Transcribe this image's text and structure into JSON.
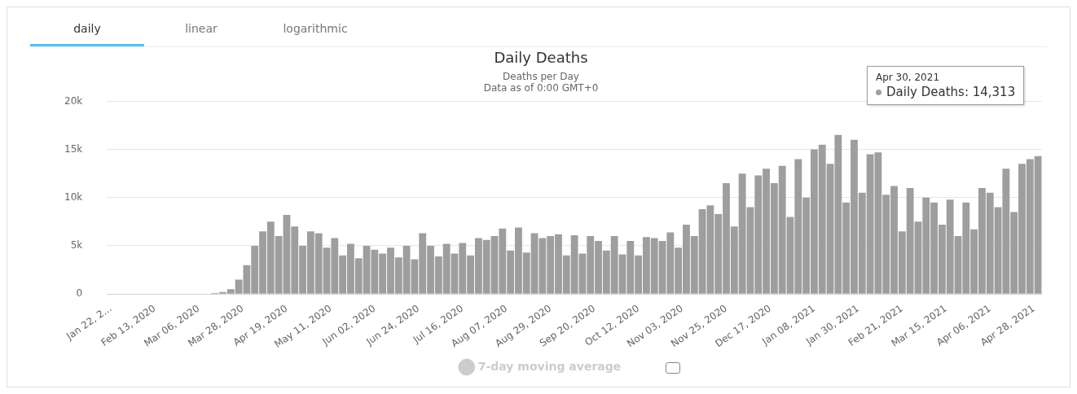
{
  "chart_data": {
    "type": "bar",
    "title": "Daily Deaths",
    "subtitle": "Deaths per Day\nData as of 0:00 GMT+0",
    "annotations": [
      "daily",
      "linear",
      "logarithmic",
      "Apr 30, 2021",
      "Daily Deaths: 14,313"
    ],
    "x": [
      "2020-01-22",
      "2020-01-26",
      "2020-01-30",
      "2020-02-03",
      "2020-02-07",
      "2020-02-11",
      "2020-02-15",
      "2020-02-19",
      "2020-02-23",
      "2020-02-27",
      "2020-03-02",
      "2020-03-06",
      "2020-03-10",
      "2020-03-14",
      "2020-03-18",
      "2020-03-22",
      "2020-03-26",
      "2020-03-30",
      "2020-04-03",
      "2020-04-07",
      "2020-04-11",
      "2020-04-15",
      "2020-04-19",
      "2020-04-23",
      "2020-04-27",
      "2020-05-01",
      "2020-05-05",
      "2020-05-09",
      "2020-05-13",
      "2020-05-17",
      "2020-05-21",
      "2020-05-25",
      "2020-05-29",
      "2020-06-02",
      "2020-06-06",
      "2020-06-10",
      "2020-06-14",
      "2020-06-18",
      "2020-06-22",
      "2020-06-26",
      "2020-06-30",
      "2020-07-04",
      "2020-07-08",
      "2020-07-12",
      "2020-07-16",
      "2020-07-20",
      "2020-07-24",
      "2020-07-28",
      "2020-08-01",
      "2020-08-05",
      "2020-08-09",
      "2020-08-13",
      "2020-08-17",
      "2020-08-21",
      "2020-08-25",
      "2020-08-29",
      "2020-09-02",
      "2020-09-06",
      "2020-09-10",
      "2020-09-14",
      "2020-09-18",
      "2020-09-22",
      "2020-09-26",
      "2020-09-30",
      "2020-10-04",
      "2020-10-08",
      "2020-10-12",
      "2020-10-16",
      "2020-10-20",
      "2020-10-24",
      "2020-10-28",
      "2020-11-01",
      "2020-11-05",
      "2020-11-09",
      "2020-11-13",
      "2020-11-17",
      "2020-11-21",
      "2020-11-25",
      "2020-11-29",
      "2020-12-03",
      "2020-12-07",
      "2020-12-11",
      "2020-12-15",
      "2020-12-19",
      "2020-12-23",
      "2020-12-27",
      "2020-12-31",
      "2021-01-04",
      "2021-01-08",
      "2021-01-12",
      "2021-01-16",
      "2021-01-20",
      "2021-01-24",
      "2021-01-28",
      "2021-02-01",
      "2021-02-05",
      "2021-02-09",
      "2021-02-13",
      "2021-02-17",
      "2021-02-21",
      "2021-02-25",
      "2021-03-01",
      "2021-03-05",
      "2021-03-09",
      "2021-03-13",
      "2021-03-17",
      "2021-03-21",
      "2021-03-25",
      "2021-03-29",
      "2021-04-02",
      "2021-04-06",
      "2021-04-10",
      "2021-04-14",
      "2021-04-18",
      "2021-04-22",
      "2021-04-26",
      "2021-04-30"
    ],
    "series": [
      {
        "color": "#9e9e9e",
        "values": [
          0,
          0,
          0,
          0,
          0,
          0,
          0,
          0,
          0,
          0,
          0,
          0,
          0,
          100,
          200,
          500,
          1500,
          3000,
          5000,
          6500,
          7500,
          6000,
          8200,
          7000,
          5000,
          6500,
          6300,
          4800,
          5800,
          4000,
          5200,
          3700,
          5000,
          4600,
          4200,
          4800,
          3800,
          5000,
          3600,
          6300,
          5000,
          3900,
          5200,
          4200,
          5300,
          4000,
          5800,
          5600,
          6000,
          6800,
          4500,
          6900,
          4300,
          6300,
          5800,
          6000,
          6200,
          4000,
          6100,
          4200,
          6000,
          5500,
          4500,
          6000,
          4100,
          5500,
          4000,
          5900,
          5800,
          5500,
          6400,
          4800,
          7200,
          6000,
          8800,
          9200,
          8300,
          11500,
          7000,
          12500,
          9000,
          12300,
          13000,
          11500,
          13300,
          8000,
          14000,
          10000,
          15000,
          15500,
          13500,
          16500,
          9500,
          16000,
          10500,
          14500,
          14700,
          10300,
          11200,
          6500,
          11000,
          7500,
          10000,
          9500,
          7200,
          9800,
          6000,
          9500,
          6700,
          11000,
          10500,
          9000,
          13000,
          8500,
          13500,
          14000,
          14313
        ]
      },
      {
        "type": "line",
        "name": "7-day moving average",
        "color": "#cccccc",
        "values": [
          null,
          null,
          null,
          null,
          null,
          null,
          null,
          null,
          null,
          null,
          null,
          null,
          null,
          null,
          null,
          null,
          null,
          null,
          null,
          null,
          null,
          null,
          null,
          null,
          null,
          null,
          null,
          null,
          null,
          null,
          null,
          null,
          null,
          null,
          null,
          null,
          null,
          null,
          null,
          null,
          null,
          null,
          null,
          null,
          null,
          null,
          null,
          null,
          null,
          null,
          null,
          null,
          null,
          null,
          null,
          null,
          null,
          null,
          null,
          null,
          null,
          null,
          null,
          null,
          null,
          null,
          null,
          null,
          null,
          null,
          null,
          null,
          null,
          null,
          null,
          null,
          null,
          null,
          null,
          null,
          null,
          null,
          null,
          null,
          null,
          null,
          null,
          null,
          null,
          null,
          null,
          null,
          null,
          null,
          null,
          null,
          null,
          null,
          null,
          null,
          null,
          null,
          null,
          null,
          null,
          null,
          null,
          null,
          null,
          null,
          null,
          null,
          null,
          null,
          null,
          null,
          null
        ]
      }
    ],
    "ylim": [
      0,
      20000
    ],
    "yticks": [
      0,
      {
        "value": 5000,
        "label": "5k"
      },
      {
        "value": 10000,
        "label": "10k"
      },
      {
        "value": 15000,
        "label": "15k"
      },
      {
        "value": 20000,
        "label": "20k"
      }
    ],
    "xlim": [
      "2020-01-20",
      "2021-05-02"
    ],
    "xticks": [
      {
        "value": "2020-01-22",
        "label": "Jan 22, 2..."
      },
      {
        "value": "2020-02-13",
        "label": "Feb 13, 2020"
      },
      {
        "value": "2020-03-06",
        "label": "Mar 06, 2020"
      },
      {
        "value": "2020-03-28",
        "label": "Mar 28, 2020"
      },
      {
        "value": "2020-04-19",
        "label": "Apr 19, 2020"
      },
      {
        "value": "2020-05-11",
        "label": "May 11, 2020"
      },
      {
        "value": "2020-06-02",
        "label": "Jun 02, 2020"
      },
      {
        "value": "2020-06-24",
        "label": "Jun 24, 2020"
      },
      {
        "value": "2020-07-16",
        "label": "Jul 16, 2020"
      },
      {
        "value": "2020-08-07",
        "label": "Aug 07, 2020"
      },
      {
        "value": "2020-08-29",
        "label": "Aug 29, 2020"
      },
      {
        "value": "2020-09-20",
        "label": "Sep 20, 2020"
      },
      {
        "value": "2020-10-12",
        "label": "Oct 12, 2020"
      },
      {
        "value": "2020-11-03",
        "label": "Nov 03, 2020"
      },
      {
        "value": "2020-11-25",
        "label": "Nov 25, 2020"
      },
      {
        "value": "2020-12-17",
        "label": "Dec 17, 2020"
      },
      {
        "value": "2021-01-08",
        "label": "Jan 08, 2021"
      },
      {
        "value": "2021-01-30",
        "label": "Jan 30, 2021"
      },
      {
        "value": "2021-02-21",
        "label": "Feb 21, 2021"
      },
      {
        "value": "2021-03-15",
        "label": "Mar 15, 2021"
      },
      {
        "value": "2021-04-06",
        "label": "Apr 06, 2021"
      },
      {
        "value": "2021-04-28",
        "label": "Apr 28, 2021"
      }
    ],
    "grid": "y",
    "legend": "bottom"
  }
}
